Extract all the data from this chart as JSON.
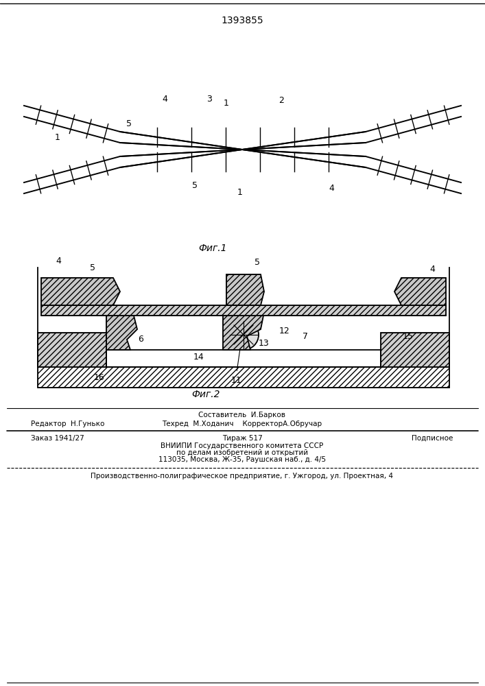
{
  "title": "1393855",
  "fig1_label": "Фиг.1",
  "fig2_label": "Фиг.2",
  "background": "#ffffff",
  "line_color": "#000000",
  "hatch_color": "#000000",
  "footer_lines": [
    [
      "Составитель  И.Барков",
      ""
    ],
    [
      "Редактор  Н.Гунько",
      "Техред  М.Ходанич    КорректорА.Обручар"
    ],
    [
      "Заказ 1941/27",
      "Тираж 517",
      "Подписное"
    ],
    [
      "     ВНИИПИ Государственного комитета СССР"
    ],
    [
      "      по делам изобретений и открытий"
    ],
    [
      "    113035, Москва, Ж-35, Раушская наб., д. 4/5"
    ],
    [
      "Производственно-полиграфическое предприятие, г. Ужгород, ул. Проектная, 4"
    ]
  ]
}
